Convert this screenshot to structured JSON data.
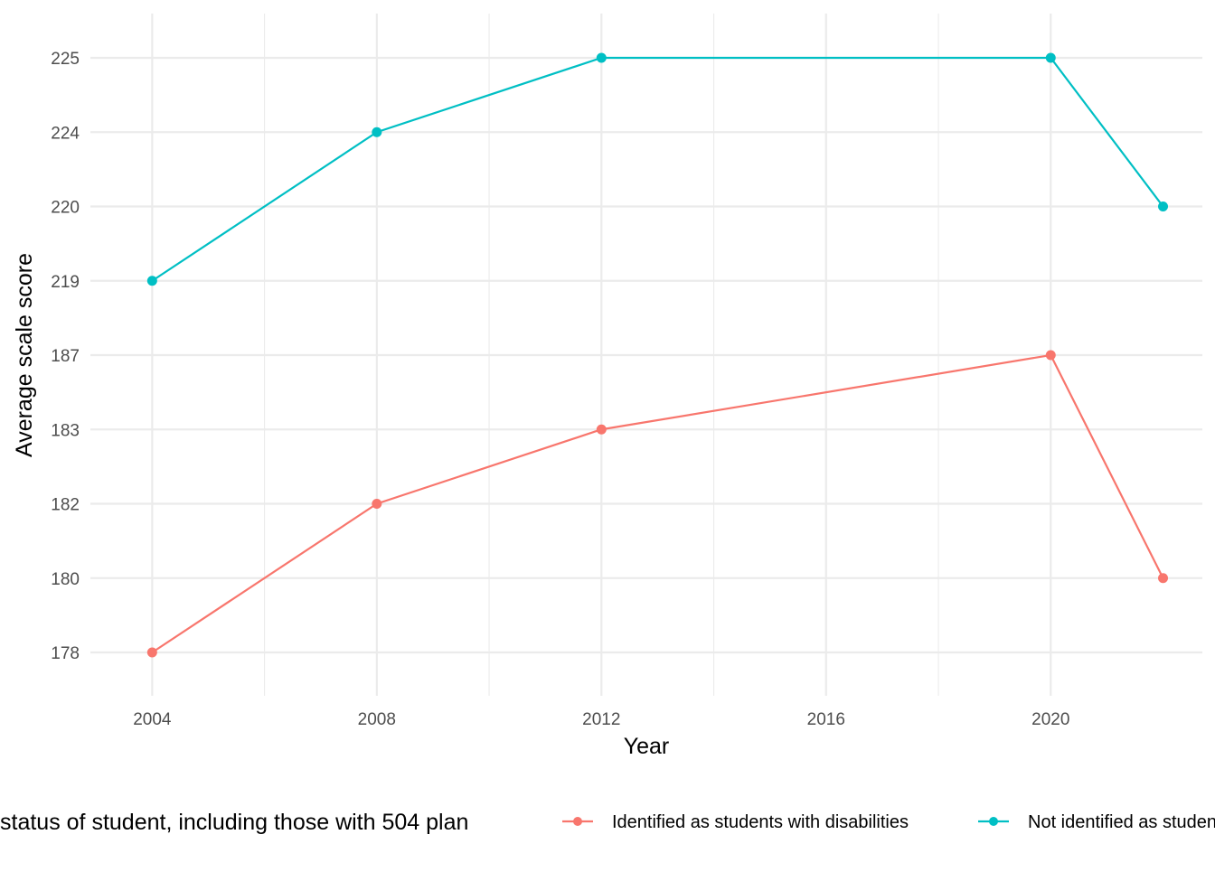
{
  "chart_data": {
    "type": "line",
    "title": "",
    "xlabel": "Year",
    "ylabel": "Average scale score",
    "x_ticks": [
      2004,
      2008,
      2012,
      2016,
      2020
    ],
    "x_tick_labels": [
      "2004",
      "2008",
      "2012",
      "2016",
      "2020"
    ],
    "xlim": [
      2002.9,
      2022.7
    ],
    "y_axis_type": "categorical",
    "y_categories": [
      "178",
      "180",
      "182",
      "183",
      "187",
      "219",
      "220",
      "224",
      "225"
    ],
    "grid": true,
    "legend": {
      "title": "status of student, including those with 504 plan",
      "placement": "bottom"
    },
    "series": [
      {
        "name": "Identified as students with disabilities",
        "color": "#F8766D",
        "x": [
          2004,
          2008,
          2012,
          2020,
          2022
        ],
        "y": [
          178,
          182,
          183,
          187,
          180
        ]
      },
      {
        "name": "Not identified as students with disabilities",
        "color": "#00BFC4",
        "x": [
          2004,
          2008,
          2012,
          2020,
          2022
        ],
        "y": [
          219,
          224,
          225,
          225,
          220
        ]
      }
    ]
  }
}
